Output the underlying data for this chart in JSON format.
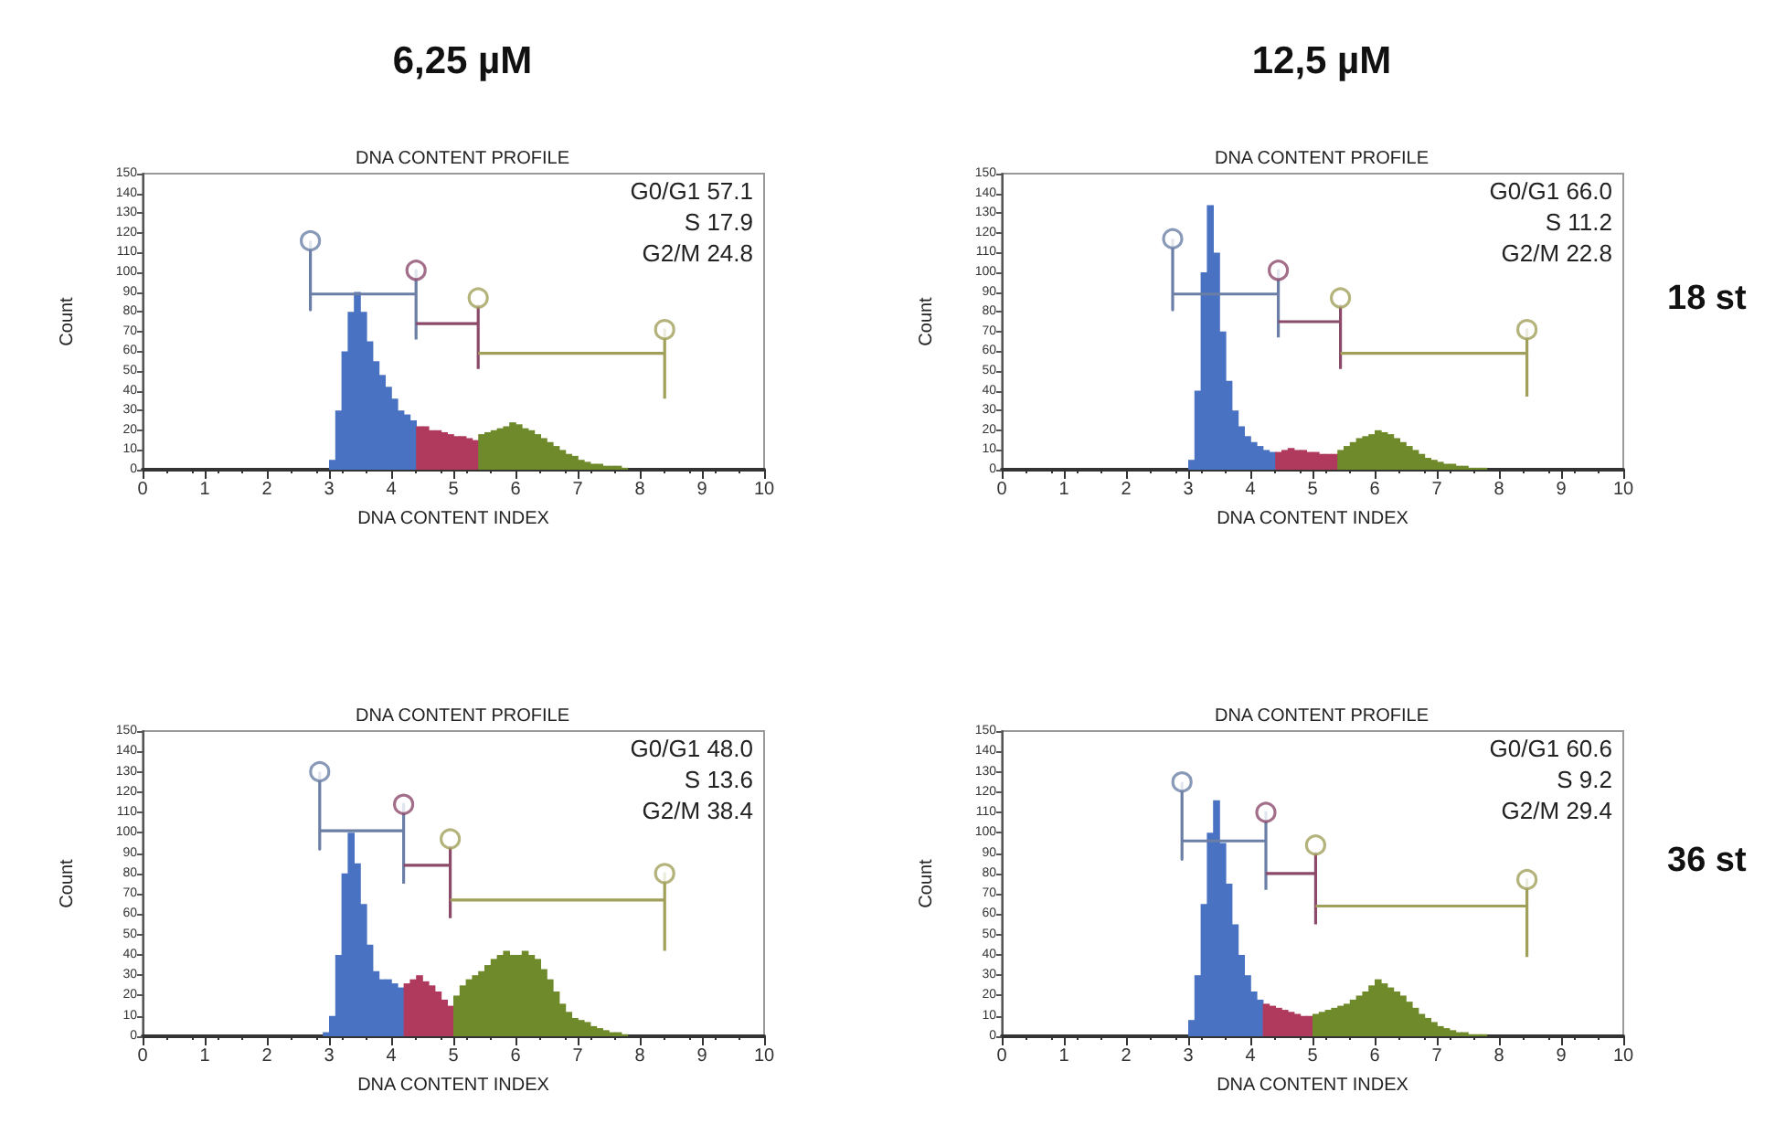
{
  "chart_data": [
    {
      "type": "histogram",
      "subtitle": "6,25 µM",
      "title": "DNA CONTENT PROFILE",
      "xlabel": "DNA CONTENT INDEX",
      "ylabel": "Count",
      "annotations": [
        "G0/G1 57.1",
        "S 17.9",
        "G2/M 24.8"
      ],
      "xlim": [
        0,
        10
      ],
      "xticks": [
        0,
        1,
        2,
        3,
        4,
        5,
        6,
        7,
        8,
        9,
        10
      ],
      "ylim": [
        0,
        150
      ],
      "yticks": [
        0,
        10,
        20,
        30,
        40,
        50,
        60,
        70,
        80,
        90,
        100,
        110,
        120,
        130,
        140,
        150
      ],
      "series": [
        {
          "type": "histogram",
          "color": "#4a72c2",
          "bins": [
            3.0,
            3.1,
            3.2,
            3.3,
            3.4,
            3.5,
            3.6,
            3.7,
            3.8,
            3.9,
            4.0,
            4.1,
            4.2,
            4.3,
            4.4
          ],
          "values": [
            5,
            30,
            60,
            80,
            90,
            80,
            65,
            55,
            48,
            42,
            36,
            30,
            28,
            25
          ]
        },
        {
          "type": "histogram",
          "color": "#b03a5e",
          "bins": [
            4.4,
            4.5,
            4.6,
            4.7,
            4.8,
            4.9,
            5.0,
            5.1,
            5.2,
            5.3,
            5.4
          ],
          "values": [
            22,
            22,
            20,
            20,
            19,
            18,
            17,
            17,
            16,
            15
          ]
        },
        {
          "type": "histogram",
          "color": "#6f8a2a",
          "bins": [
            5.4,
            5.5,
            5.6,
            5.7,
            5.8,
            5.9,
            6.0,
            6.1,
            6.2,
            6.3,
            6.4,
            6.5,
            6.6,
            6.7,
            6.8,
            6.9,
            7.0,
            7.1,
            7.2,
            7.3,
            7.4,
            7.5,
            7.6,
            7.7,
            7.8
          ],
          "values": [
            18,
            19,
            20,
            21,
            22,
            24,
            23,
            21,
            20,
            18,
            16,
            14,
            12,
            10,
            8,
            7,
            5,
            4,
            3,
            3,
            2,
            2,
            2,
            1
          ]
        },
        {
          "type": "line",
          "color": "#6b7fa6",
          "x": [
            2.7,
            2.7,
            2.7,
            4.4,
            4.4,
            4.4
          ],
          "values": [
            116,
            81,
            89,
            89,
            101,
            66
          ]
        },
        {
          "type": "line",
          "color": "#8c4a6b",
          "x": [
            4.4,
            5.4,
            5.4,
            5.4
          ],
          "values": [
            74,
            74,
            83,
            51
          ]
        },
        {
          "type": "line",
          "color": "#a0a05a",
          "x": [
            5.4,
            8.4,
            8.4,
            8.4
          ],
          "values": [
            59,
            59,
            71,
            36
          ]
        },
        {
          "type": "scatter",
          "marker": "circle",
          "colors": [
            "#6b7fa6",
            "#8c4a6b",
            "#a0a05a",
            "#a0a05a"
          ],
          "x": [
            2.7,
            4.4,
            5.4,
            8.4
          ],
          "values": [
            116,
            101,
            87,
            71
          ]
        }
      ]
    },
    {
      "type": "histogram",
      "subtitle": "12,5 µM",
      "title": "DNA CONTENT PROFILE",
      "xlabel": "DNA CONTENT INDEX",
      "ylabel": "Count",
      "annotations": [
        "G0/G1 66.0",
        "S 11.2",
        "G2/M 22.8",
        "18 st"
      ],
      "xlim": [
        0,
        10
      ],
      "xticks": [
        0,
        1,
        2,
        3,
        4,
        5,
        6,
        7,
        8,
        9,
        10
      ],
      "ylim": [
        0,
        150
      ],
      "yticks": [
        0,
        10,
        20,
        30,
        40,
        50,
        60,
        70,
        80,
        90,
        100,
        110,
        120,
        130,
        140,
        150
      ],
      "series": [
        {
          "type": "histogram",
          "color": "#4a72c2",
          "bins": [
            3.0,
            3.1,
            3.2,
            3.3,
            3.4,
            3.5,
            3.6,
            3.7,
            3.8,
            3.9,
            4.0,
            4.1,
            4.2,
            4.3,
            4.4
          ],
          "values": [
            5,
            40,
            100,
            134,
            110,
            70,
            45,
            30,
            22,
            17,
            14,
            12,
            10,
            9
          ]
        },
        {
          "type": "histogram",
          "color": "#b03a5e",
          "bins": [
            4.4,
            4.5,
            4.6,
            4.7,
            4.8,
            4.9,
            5.0,
            5.1,
            5.2,
            5.3,
            5.4
          ],
          "values": [
            9,
            10,
            11,
            10,
            10,
            9,
            9,
            8,
            8,
            8
          ]
        },
        {
          "type": "histogram",
          "color": "#6f8a2a",
          "bins": [
            5.4,
            5.5,
            5.6,
            5.7,
            5.8,
            5.9,
            6.0,
            6.1,
            6.2,
            6.3,
            6.4,
            6.5,
            6.6,
            6.7,
            6.8,
            6.9,
            7.0,
            7.1,
            7.2,
            7.3,
            7.4,
            7.5,
            7.6,
            7.7,
            7.8
          ],
          "values": [
            10,
            12,
            14,
            16,
            17,
            18,
            20,
            19,
            18,
            16,
            14,
            12,
            10,
            8,
            6,
            5,
            4,
            3,
            3,
            2,
            2,
            1,
            1,
            1
          ]
        },
        {
          "type": "line",
          "color": "#6b7fa6",
          "x": [
            2.75,
            2.75,
            2.75,
            4.45,
            4.45,
            4.45
          ],
          "values": [
            117,
            81,
            89,
            89,
            101,
            67
          ]
        },
        {
          "type": "line",
          "color": "#8c4a6b",
          "x": [
            4.45,
            5.45,
            5.45,
            5.45
          ],
          "values": [
            75,
            75,
            83,
            51
          ]
        },
        {
          "type": "line",
          "color": "#a0a05a",
          "x": [
            5.45,
            8.45,
            8.45,
            8.45
          ],
          "values": [
            59,
            59,
            71,
            37
          ]
        },
        {
          "type": "scatter",
          "marker": "circle",
          "colors": [
            "#6b7fa6",
            "#8c4a6b",
            "#a0a05a",
            "#a0a05a"
          ],
          "x": [
            2.75,
            4.45,
            5.45,
            8.45
          ],
          "values": [
            117,
            101,
            87,
            71
          ]
        }
      ]
    },
    {
      "type": "histogram",
      "title": "DNA CONTENT PROFILE",
      "xlabel": "DNA CONTENT INDEX",
      "ylabel": "Count",
      "annotations": [
        "G0/G1 48.0",
        "S 13.6",
        "G2/M 38.4"
      ],
      "xlim": [
        0,
        10
      ],
      "xticks": [
        0,
        1,
        2,
        3,
        4,
        5,
        6,
        7,
        8,
        9,
        10
      ],
      "ylim": [
        0,
        150
      ],
      "yticks": [
        0,
        10,
        20,
        30,
        40,
        50,
        60,
        70,
        80,
        90,
        100,
        110,
        120,
        130,
        140,
        150
      ],
      "series": [
        {
          "type": "histogram",
          "color": "#4a72c2",
          "bins": [
            2.9,
            3.0,
            3.1,
            3.2,
            3.3,
            3.4,
            3.5,
            3.6,
            3.7,
            3.8,
            3.9,
            4.0,
            4.1,
            4.2
          ],
          "values": [
            2,
            10,
            40,
            80,
            100,
            85,
            65,
            45,
            32,
            28,
            28,
            26,
            24
          ]
        },
        {
          "type": "histogram",
          "color": "#b03a5e",
          "bins": [
            4.2,
            4.3,
            4.4,
            4.5,
            4.6,
            4.7,
            4.8,
            4.9,
            5.0
          ],
          "values": [
            26,
            28,
            30,
            27,
            25,
            22,
            18,
            15
          ]
        },
        {
          "type": "histogram",
          "color": "#6f8a2a",
          "bins": [
            5.0,
            5.1,
            5.2,
            5.3,
            5.4,
            5.5,
            5.6,
            5.7,
            5.8,
            5.9,
            6.0,
            6.1,
            6.2,
            6.3,
            6.4,
            6.5,
            6.6,
            6.7,
            6.8,
            6.9,
            7.0,
            7.1,
            7.2,
            7.3,
            7.4,
            7.5,
            7.6,
            7.7,
            7.8
          ],
          "values": [
            20,
            25,
            28,
            30,
            32,
            35,
            38,
            40,
            42,
            40,
            40,
            42,
            40,
            38,
            33,
            28,
            22,
            16,
            12,
            9,
            8,
            7,
            5,
            4,
            3,
            2,
            2,
            1
          ]
        },
        {
          "type": "line",
          "color": "#6b7fa6",
          "x": [
            2.85,
            2.85,
            2.85,
            4.2,
            4.2,
            4.2
          ],
          "values": [
            130,
            92,
            101,
            101,
            114,
            75
          ]
        },
        {
          "type": "line",
          "color": "#8c4a6b",
          "x": [
            4.2,
            4.95,
            4.95,
            4.95
          ],
          "values": [
            84,
            84,
            93,
            58
          ]
        },
        {
          "type": "line",
          "color": "#a0a05a",
          "x": [
            4.95,
            8.4,
            8.4,
            8.4
          ],
          "values": [
            67,
            67,
            80,
            42
          ]
        },
        {
          "type": "scatter",
          "marker": "circle",
          "colors": [
            "#6b7fa6",
            "#8c4a6b",
            "#a0a05a",
            "#a0a05a"
          ],
          "x": [
            2.85,
            4.2,
            4.95,
            8.4
          ],
          "values": [
            130,
            114,
            97,
            80
          ]
        }
      ]
    },
    {
      "type": "histogram",
      "title": "DNA CONTENT PROFILE",
      "xlabel": "DNA CONTENT INDEX",
      "ylabel": "Count",
      "annotations": [
        "G0/G1 60.6",
        "S 9.2",
        "G2/M 29.4",
        "36 st"
      ],
      "xlim": [
        0,
        10
      ],
      "xticks": [
        0,
        1,
        2,
        3,
        4,
        5,
        6,
        7,
        8,
        9,
        10
      ],
      "ylim": [
        0,
        150
      ],
      "yticks": [
        0,
        10,
        20,
        30,
        40,
        50,
        60,
        70,
        80,
        90,
        100,
        110,
        120,
        130,
        140,
        150
      ],
      "series": [
        {
          "type": "histogram",
          "color": "#4a72c2",
          "bins": [
            3.0,
            3.1,
            3.2,
            3.3,
            3.4,
            3.5,
            3.6,
            3.7,
            3.8,
            3.9,
            4.0,
            4.1,
            4.2
          ],
          "values": [
            8,
            30,
            65,
            100,
            116,
            95,
            75,
            55,
            40,
            30,
            22,
            18
          ]
        },
        {
          "type": "histogram",
          "color": "#b03a5e",
          "bins": [
            4.2,
            4.3,
            4.4,
            4.5,
            4.6,
            4.7,
            4.8,
            4.9,
            5.0
          ],
          "values": [
            16,
            15,
            14,
            13,
            12,
            11,
            10,
            10
          ]
        },
        {
          "type": "histogram",
          "color": "#6f8a2a",
          "bins": [
            5.0,
            5.1,
            5.2,
            5.3,
            5.4,
            5.5,
            5.6,
            5.7,
            5.8,
            5.9,
            6.0,
            6.1,
            6.2,
            6.3,
            6.4,
            6.5,
            6.6,
            6.7,
            6.8,
            6.9,
            7.0,
            7.1,
            7.2,
            7.3,
            7.4,
            7.5,
            7.6,
            7.7,
            7.8
          ],
          "values": [
            11,
            12,
            13,
            14,
            15,
            16,
            18,
            20,
            22,
            25,
            28,
            26,
            24,
            22,
            20,
            17,
            14,
            11,
            9,
            7,
            5,
            4,
            3,
            2,
            2,
            1,
            1,
            1
          ]
        },
        {
          "type": "line",
          "color": "#6b7fa6",
          "x": [
            2.9,
            2.9,
            2.9,
            4.25,
            4.25,
            4.25
          ],
          "values": [
            125,
            87,
            96,
            96,
            110,
            72
          ]
        },
        {
          "type": "line",
          "color": "#8c4a6b",
          "x": [
            4.25,
            5.05,
            5.05,
            5.05
          ],
          "values": [
            80,
            80,
            90,
            55
          ]
        },
        {
          "type": "line",
          "color": "#a0a05a",
          "x": [
            5.05,
            8.45,
            8.45,
            8.45
          ],
          "values": [
            64,
            64,
            77,
            39
          ]
        },
        {
          "type": "scatter",
          "marker": "circle",
          "colors": [
            "#6b7fa6",
            "#8c4a6b",
            "#a0a05a",
            "#a0a05a"
          ],
          "x": [
            2.9,
            4.25,
            5.05,
            8.45
          ],
          "values": [
            125,
            110,
            94,
            77
          ]
        }
      ]
    }
  ]
}
